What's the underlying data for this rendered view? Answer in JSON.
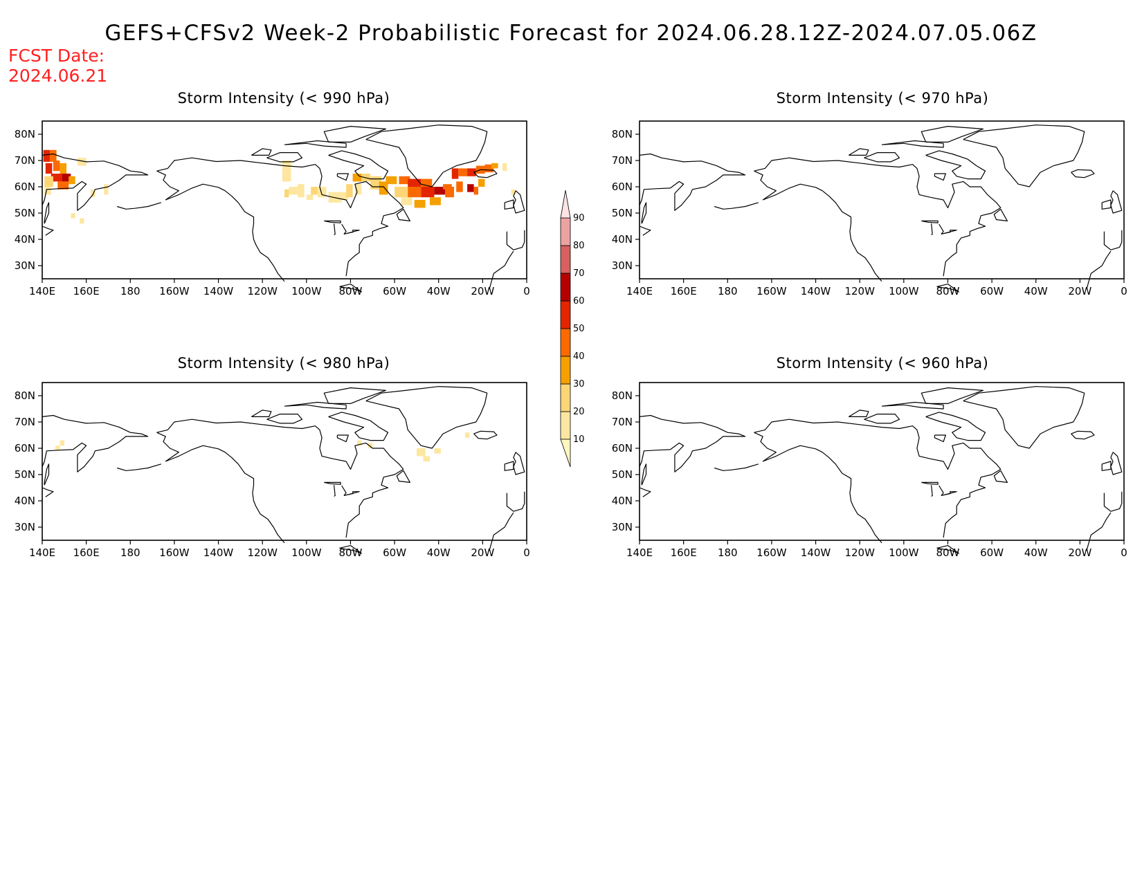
{
  "title": "GEFS+CFSv2 Week-2 Probabilistic Forecast for 2024.06.28.12Z-2024.07.05.06Z",
  "fcst_date_label": "FCST Date:",
  "fcst_date": "2024.06.21",
  "x_ticks": [
    "140E",
    "160E",
    "180",
    "160W",
    "140W",
    "120W",
    "100W",
    "80W",
    "60W",
    "40W",
    "20W",
    "0"
  ],
  "y_ticks": [
    "80N",
    "70N",
    "60N",
    "50N",
    "40N",
    "30N"
  ],
  "panels": [
    {
      "id": "p990",
      "title": "Storm Intensity (< 990 hPa)"
    },
    {
      "id": "p970",
      "title": "Storm Intensity (< 970 hPa)"
    },
    {
      "id": "p980",
      "title": "Storm Intensity (< 980 hPa)"
    },
    {
      "id": "p960",
      "title": "Storm Intensity (< 960 hPa)"
    }
  ],
  "colorbar": {
    "levels": [
      "10",
      "20",
      "30",
      "40",
      "50",
      "60",
      "70",
      "80",
      "90"
    ],
    "colors": [
      "#fff7bf",
      "#fde7a0",
      "#fcd676",
      "#f5a000",
      "#fa6a00",
      "#e32500",
      "#b50000",
      "#d86060",
      "#eda2a2",
      "#fde3e3"
    ]
  },
  "colors": {
    "title": "#000000",
    "fcst_date": "#ff2020",
    "coast": "#000000"
  }
}
